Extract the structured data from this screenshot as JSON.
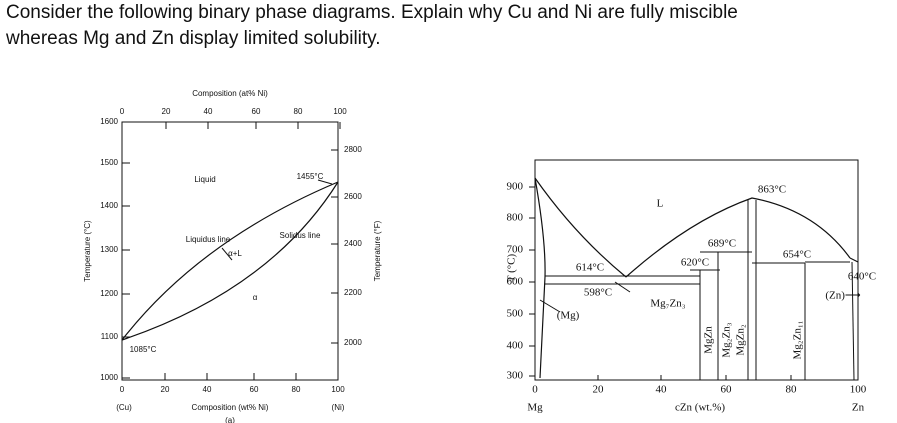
{
  "question": [
    "Consider the following binary phase diagrams. Explain why Cu and Ni are fully miscible",
    "whereas Mg and Zn display limited solubility."
  ],
  "figure_a": {
    "top_axis_label": "Composition (at% Ni)",
    "top_ticks": [
      "0",
      "20",
      "40",
      "60",
      "80",
      "100"
    ],
    "bottom_ticks": [
      "0",
      "20",
      "40",
      "60",
      "80",
      "100"
    ],
    "left_ticks": [
      "1600",
      "1500",
      "1400",
      "1300",
      "1200",
      "1100",
      "1000"
    ],
    "right_ticks": [
      "2800",
      "2600",
      "2400",
      "2200",
      "2000"
    ],
    "left_axis_label": "Temperature (°C)",
    "right_axis_label": "Temperature (°F)",
    "bottom_axis_label": "Composition (wt% Ni)",
    "left_end": "(Cu)",
    "right_end": "(Ni)",
    "caption": "(a)",
    "labels": [
      "Liquid",
      "1455°C",
      "Liquidus line",
      "Solidus line",
      "α+L",
      "α",
      "1085°C"
    ]
  },
  "figure_b": {
    "left_ticks": [
      "900",
      "800",
      "700",
      "600",
      "500",
      "400",
      "300"
    ],
    "bottom_ticks": [
      "0",
      "20",
      "40",
      "60",
      "80",
      "100"
    ],
    "y_axis_label": "T (°C)",
    "x_axis_label": "cZn (wt.%)",
    "left_end": "Mg",
    "right_end": "Zn",
    "labels": [
      "L",
      "863°C",
      "689°C",
      "620°C",
      "654°C",
      "640°C",
      "(Zn)⟶",
      "614°C",
      "598°C",
      "(Mg)",
      "Mg₇Zn₃"
    ],
    "phases": [
      "MgZn",
      "Mg₂Zn₃",
      "MgZn₂",
      "Mg₂Zn₁₁"
    ]
  }
}
